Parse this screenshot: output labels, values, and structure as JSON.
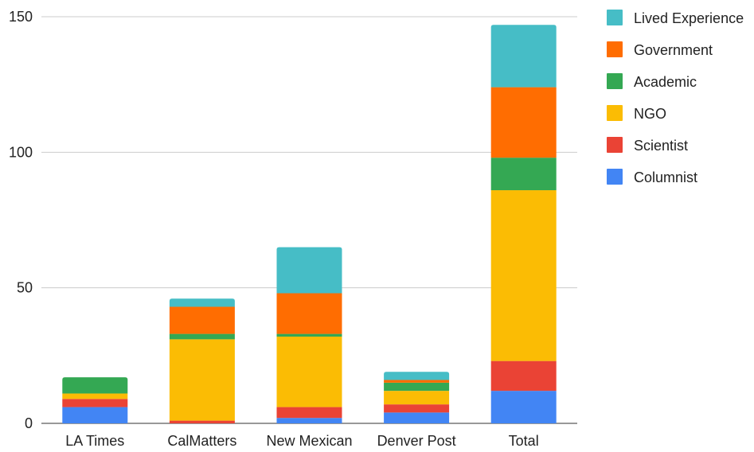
{
  "chart_data": {
    "type": "bar",
    "stacked": true,
    "title": "",
    "xlabel": "",
    "ylabel": "",
    "categories": [
      "LA Times",
      "CalMatters",
      "New Mexican",
      "Denver Post",
      "Total"
    ],
    "ylim": [
      0,
      150
    ],
    "yticks": [
      0,
      50,
      100,
      150
    ],
    "grid": true,
    "legend_position": "right",
    "series": [
      {
        "name": "Columnist",
        "color": "#4285F4",
        "values": [
          6,
          0,
          2,
          4,
          12
        ]
      },
      {
        "name": "Scientist",
        "color": "#EA4335",
        "values": [
          3,
          1,
          4,
          3,
          11
        ]
      },
      {
        "name": "NGO",
        "color": "#FBBC04",
        "values": [
          2,
          30,
          26,
          5,
          63
        ]
      },
      {
        "name": "Academic",
        "color": "#34A853",
        "values": [
          6,
          2,
          1,
          3,
          12
        ]
      },
      {
        "name": "Government",
        "color": "#FF6D01",
        "values": [
          0,
          10,
          15,
          1,
          26
        ]
      },
      {
        "name": "Lived Experience",
        "color": "#46BDC6",
        "values": [
          0,
          3,
          17,
          3,
          23
        ]
      }
    ]
  }
}
